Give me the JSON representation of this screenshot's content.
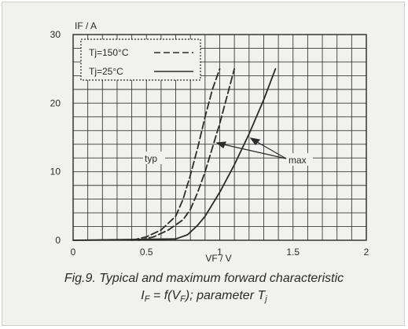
{
  "chart_data": {
    "type": "line",
    "ylabel": "IF / A",
    "xlabel": "VF / V",
    "xlim": [
      0,
      2
    ],
    "ylim": [
      0,
      30
    ],
    "x_ticks": [
      "0",
      "0.5",
      "1",
      "1.5",
      "2"
    ],
    "y_ticks": [
      "0",
      "10",
      "20",
      "30"
    ],
    "grid": true,
    "legend_position": "top-left",
    "legend": [
      {
        "label": "Tj=150°C",
        "style": "dashed"
      },
      {
        "label": "Tj=25°C",
        "style": "solid"
      }
    ],
    "series": [
      {
        "legend_ref": 0,
        "kind": "typ",
        "style": "dashed",
        "x": [
          0.4,
          0.5,
          0.6,
          0.7,
          0.75,
          0.8,
          0.85,
          0.9,
          0.95,
          1.0
        ],
        "y": [
          0,
          0.5,
          1.5,
          3.5,
          6.0,
          9.5,
          13.5,
          18.0,
          22.0,
          25.0
        ]
      },
      {
        "legend_ref": 0,
        "kind": "max",
        "style": "dashed",
        "x": [
          0.45,
          0.55,
          0.65,
          0.75,
          0.8,
          0.85,
          0.9,
          0.95,
          1.0,
          1.05,
          1.1
        ],
        "y": [
          0,
          0.5,
          1.5,
          3.0,
          4.5,
          7.0,
          10.0,
          13.5,
          17.0,
          21.0,
          25.0
        ]
      },
      {
        "legend_ref": 1,
        "kind": "max",
        "style": "solid",
        "x": [
          0.0,
          0.7,
          0.78,
          0.85,
          0.9,
          1.0,
          1.1,
          1.2,
          1.3,
          1.38
        ],
        "y": [
          0,
          0.2,
          0.8,
          2.2,
          3.5,
          7.0,
          11.0,
          15.5,
          20.5,
          25.0
        ]
      }
    ],
    "annotations": [
      {
        "text": "typ",
        "x": 0.55,
        "y": 12.5
      },
      {
        "text": "max",
        "x": 1.57,
        "y": 12.5
      }
    ]
  },
  "caption": {
    "line1": "Fig.9.  Typical and maximum forward characteristic",
    "eq_I": "I",
    "eq_I_sub": "F",
    "eq_mid": " = f(V",
    "eq_V_sub": "F",
    "eq_end": "); parameter T",
    "eq_T_sub": "j"
  },
  "colors": {
    "ink": "#2a2a2a",
    "grid": "#3a3a3a",
    "background": "#f1f1ef"
  }
}
